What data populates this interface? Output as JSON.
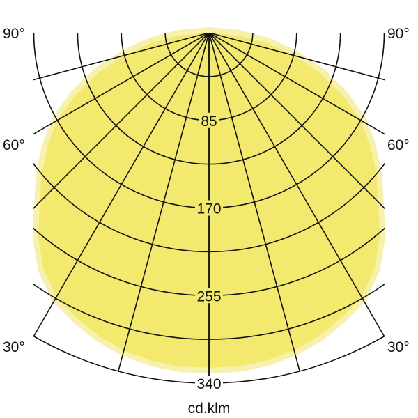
{
  "chart_data": {
    "type": "polar",
    "unit_label": "cd.klm",
    "radial_range": [
      0,
      340
    ],
    "radial_gridlines": [
      42.5,
      85,
      127.5,
      170,
      212.5,
      255,
      297.5,
      340
    ],
    "radial_tick_labels": [
      "85",
      "170",
      "255",
      "340"
    ],
    "angle_gridlines_deg": [
      0,
      15,
      30,
      45,
      60,
      75,
      90
    ],
    "angle_tick_labels": [
      "90°",
      "60°",
      "30°"
    ],
    "symmetric": true,
    "series": [
      {
        "angles_deg": [
          0,
          5,
          10,
          15,
          20,
          25,
          30,
          35,
          40,
          45,
          50,
          55,
          60,
          65,
          70,
          75,
          80,
          85,
          90
        ],
        "values": [
          325,
          325,
          323,
          319,
          313,
          305,
          296,
          280,
          258,
          232,
          212,
          191,
          170,
          143,
          115,
          85,
          57,
          28,
          0
        ]
      }
    ],
    "colors": {
      "fill": "#f3e96f",
      "halo": "#f8f1ad",
      "grid": "#111111"
    }
  }
}
